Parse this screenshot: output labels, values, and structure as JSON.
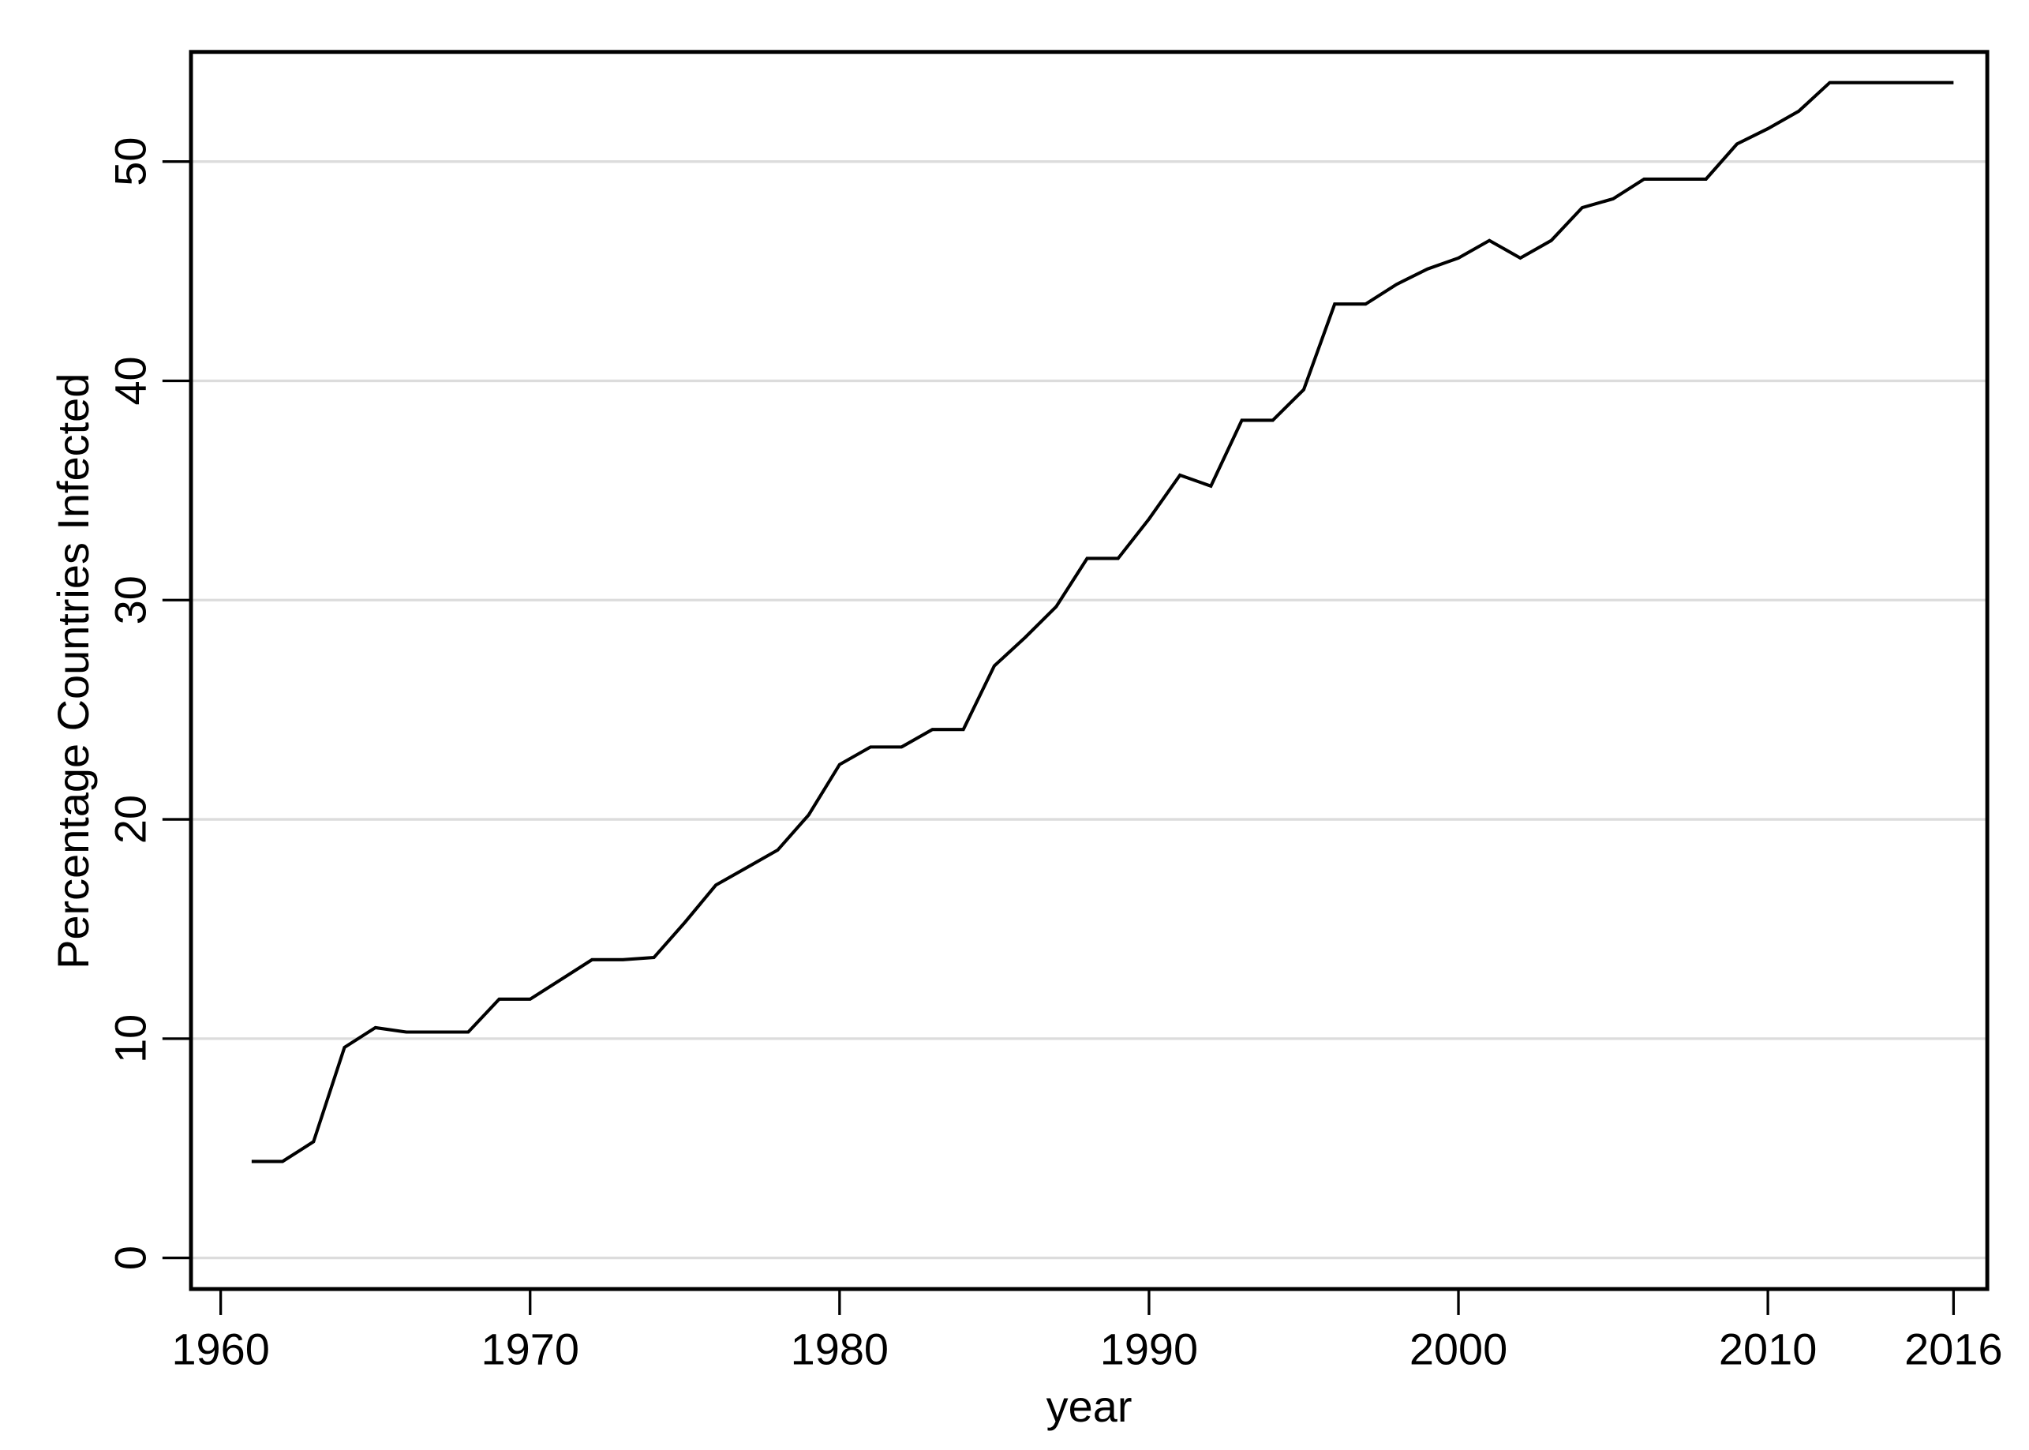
{
  "chart_data": {
    "type": "line",
    "x_label": "year",
    "y_label": "Percentage Countries Infected",
    "x": [
      1961,
      1962,
      1963,
      1964,
      1965,
      1966,
      1967,
      1968,
      1969,
      1970,
      1971,
      1972,
      1973,
      1974,
      1975,
      1976,
      1977,
      1978,
      1979,
      1980,
      1981,
      1982,
      1983,
      1984,
      1985,
      1986,
      1987,
      1988,
      1989,
      1990,
      1991,
      1992,
      1993,
      1994,
      1995,
      1996,
      1997,
      1998,
      1999,
      2000,
      2001,
      2002,
      2003,
      2004,
      2005,
      2006,
      2007,
      2008,
      2009,
      2010,
      2011,
      2012,
      2013,
      2014,
      2015,
      2016
    ],
    "series": [
      {
        "color": "#000000",
        "values": [
          4.4,
          4.4,
          5.3,
          9.6,
          10.5,
          10.3,
          10.3,
          10.3,
          11.8,
          11.8,
          12.7,
          13.6,
          13.6,
          13.7,
          15.3,
          17.0,
          17.8,
          18.6,
          20.2,
          22.5,
          23.3,
          23.3,
          24.1,
          24.1,
          27.0,
          28.3,
          29.7,
          31.9,
          31.9,
          33.7,
          35.7,
          35.2,
          38.2,
          38.2,
          39.6,
          43.5,
          43.5,
          44.4,
          45.1,
          45.6,
          46.4,
          45.6,
          46.4,
          47.9,
          48.3,
          49.2,
          49.2,
          49.2,
          50.8,
          51.5,
          52.3,
          53.6,
          53.6,
          53.6,
          53.6,
          53.6
        ]
      }
    ],
    "xlim": [
      1959.04,
      2017.09
    ],
    "ylim": [
      -1.42,
      55.0
    ],
    "xticks": [
      1960,
      1970,
      1980,
      1990,
      2000,
      2010,
      2016
    ],
    "yticks": [
      0,
      10,
      20,
      30,
      40,
      50
    ],
    "grid": true
  }
}
